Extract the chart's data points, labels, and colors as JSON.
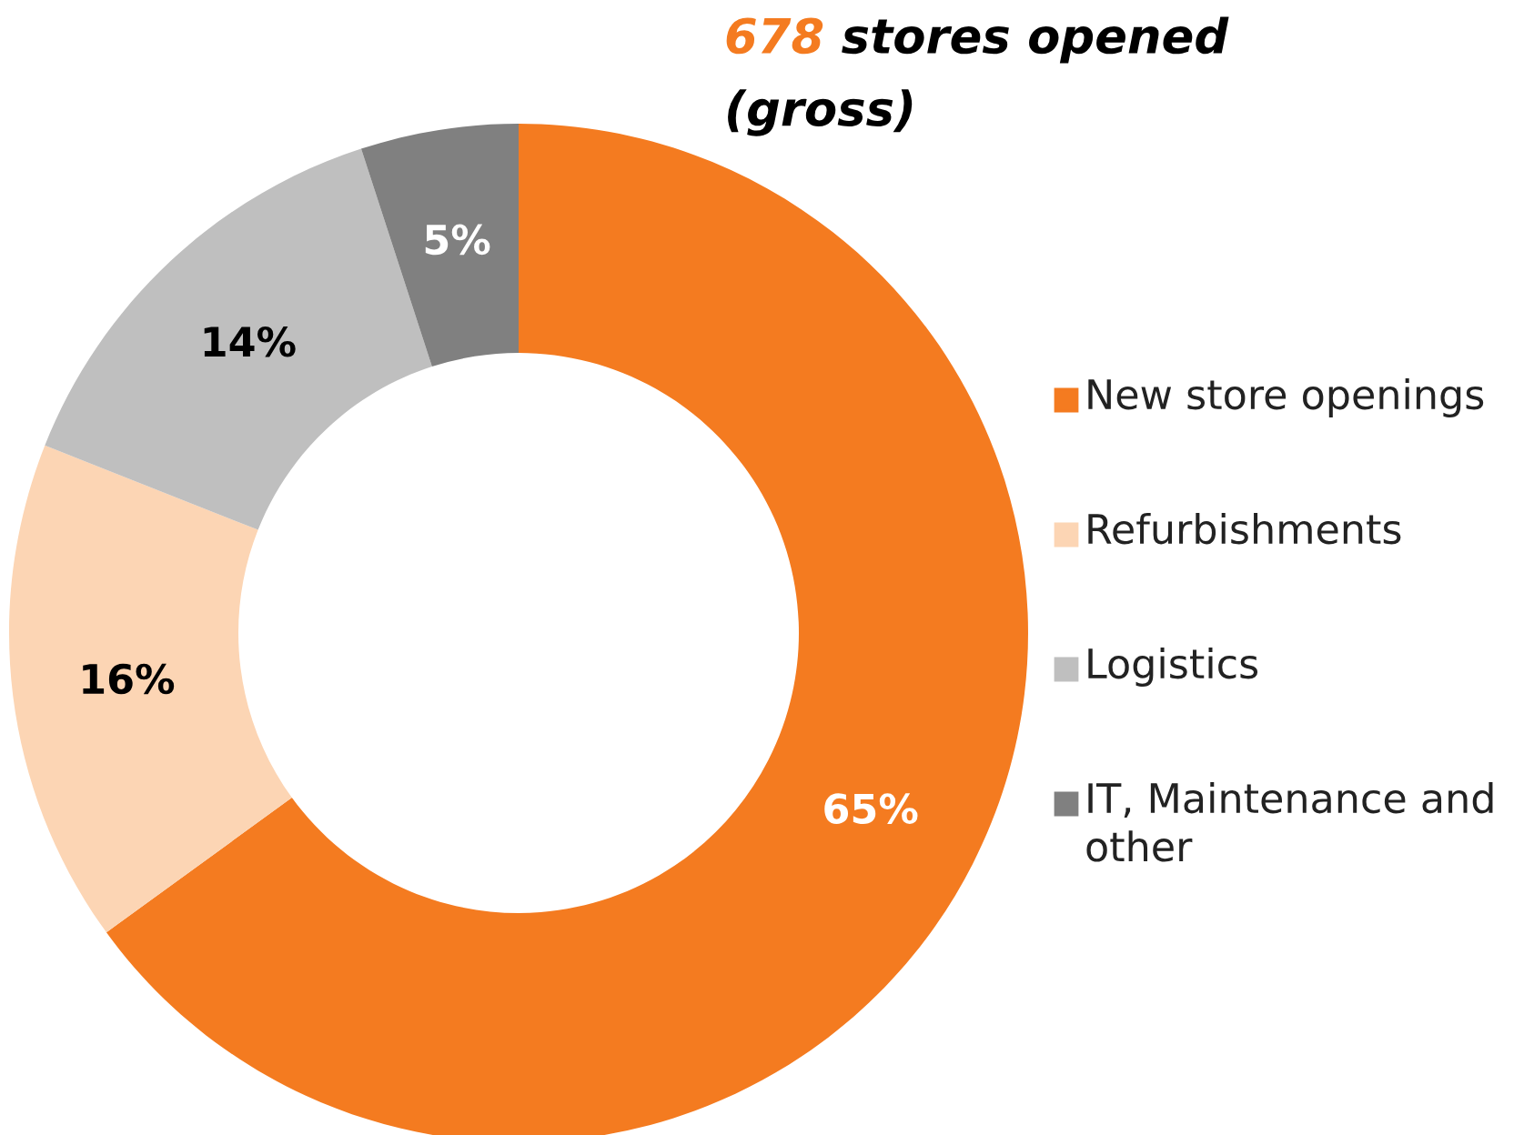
{
  "chart_data": {
    "type": "donut",
    "title": "678 stores opened (gross)",
    "categories": [
      "New store openings",
      "Refurbishments",
      "Logistics",
      "IT, Maintenance and other"
    ],
    "values": [
      65,
      16,
      14,
      5
    ],
    "colors": [
      "#f47b20",
      "#fcd5b4",
      "#bfbfbf",
      "#808080"
    ],
    "value_labels": [
      "65%",
      "16%",
      "14%",
      "5%"
    ],
    "legend": "right"
  }
}
